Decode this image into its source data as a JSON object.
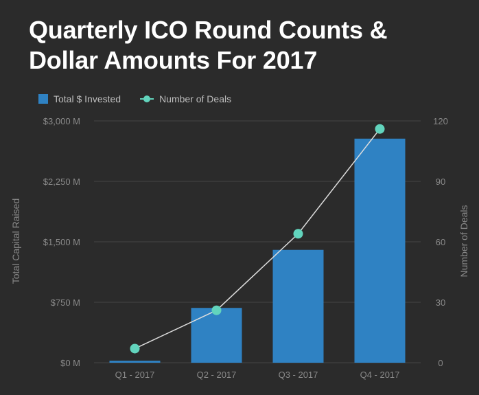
{
  "chart_data": {
    "type": "bar",
    "title": "Quarterly ICO Round Counts & Dollar Amounts For 2017",
    "categories": [
      "Q1 - 2017",
      "Q2 - 2017",
      "Q3 - 2017",
      "Q4 - 2017"
    ],
    "series": [
      {
        "name": "Total $ Invested",
        "type": "bar",
        "axis": "left",
        "values": [
          25,
          680,
          1400,
          2780
        ]
      },
      {
        "name": "Number of Deals",
        "type": "line",
        "axis": "right",
        "values": [
          7,
          26,
          64,
          116
        ]
      }
    ],
    "ylabel": "Total Capital Raised",
    "y2label": "Number of Deals",
    "ylim": [
      0,
      3000
    ],
    "y2lim": [
      0,
      120
    ],
    "yticks": [
      0,
      750,
      1500,
      2250,
      3000
    ],
    "ytick_labels": [
      "$0 M",
      "$750 M",
      "$1,500 M",
      "$2,250 M",
      "$3,000 M"
    ],
    "y2ticks": [
      0,
      30,
      60,
      90,
      120
    ],
    "y2tick_labels": [
      "0",
      "30",
      "60",
      "90",
      "120"
    ],
    "grid": true,
    "legend_position": "top-left",
    "colors": {
      "bar": "#2f82c3",
      "line": "#dddddd",
      "marker": "#62d4bd",
      "background": "#2b2b2b",
      "grid": "#444444",
      "text": "#8a8a8a"
    }
  }
}
